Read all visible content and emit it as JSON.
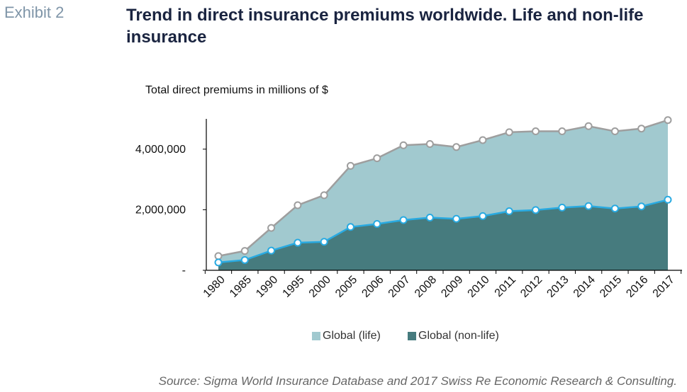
{
  "header": {
    "exhibit": "Exhibit 2",
    "title": "Trend in direct insurance premiums worldwide. Life and non-life insurance"
  },
  "source": "Source: Sigma World Insurance Database and 2017 Swiss Re Economic Research & Consulting.",
  "chart_data": {
    "type": "area",
    "title": "Trend in direct insurance premiums worldwide. Life and non-life insurance",
    "ylabel": "Total direct premiums in millions of $",
    "xlabel": "",
    "categories": [
      "1980",
      "1985",
      "1990",
      "1995",
      "2000",
      "2005",
      "2006",
      "2007",
      "2008",
      "2009",
      "2010",
      "2011",
      "2012",
      "2013",
      "2014",
      "2015",
      "2016",
      "2017"
    ],
    "series": [
      {
        "name": "Global (life)",
        "color": "#a1c9cf",
        "line_color": "#9e9e9e",
        "values": [
          470000,
          640000,
          1400000,
          2150000,
          2480000,
          3450000,
          3700000,
          4130000,
          4170000,
          4070000,
          4300000,
          4560000,
          4590000,
          4590000,
          4760000,
          4590000,
          4680000,
          4960000
        ]
      },
      {
        "name": "Global (non-life)",
        "color": "#467b7e",
        "line_color": "#29aae1",
        "values": [
          260000,
          340000,
          650000,
          910000,
          940000,
          1430000,
          1530000,
          1660000,
          1740000,
          1700000,
          1790000,
          1950000,
          1990000,
          2070000,
          2120000,
          2040000,
          2110000,
          2330000
        ]
      }
    ],
    "yticks": [
      {
        "value": 0,
        "label": "-"
      },
      {
        "value": 2000000,
        "label": "2,000,000"
      },
      {
        "value": 4000000,
        "label": "4,000,000"
      }
    ],
    "ylim": [
      0,
      5000000
    ],
    "grid": false,
    "legend_position": "bottom"
  }
}
